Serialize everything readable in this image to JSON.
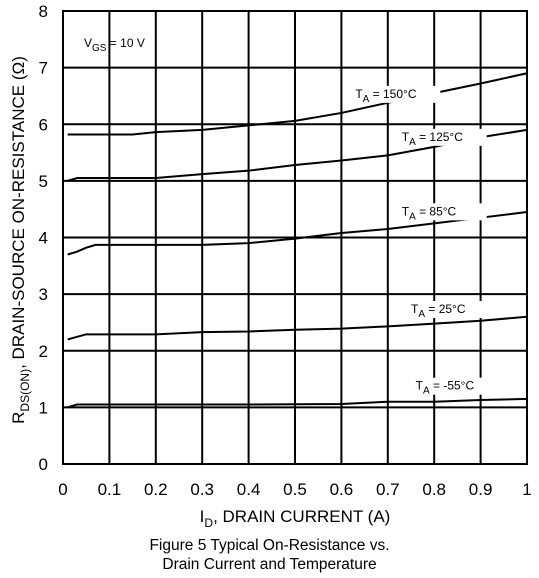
{
  "chart_data": {
    "type": "line",
    "xlim": [
      0,
      1
    ],
    "ylim": [
      0,
      8
    ],
    "xticks": [
      {
        "value": 0,
        "label": "0"
      },
      {
        "value": 0.1,
        "label": "0.1"
      },
      {
        "value": 0.2,
        "label": "0.2"
      },
      {
        "value": 0.3,
        "label": "0.3"
      },
      {
        "value": 0.4,
        "label": "0.4"
      },
      {
        "value": 0.5,
        "label": "0.5"
      },
      {
        "value": 0.6,
        "label": "0.6"
      },
      {
        "value": 0.7,
        "label": "0.7"
      },
      {
        "value": 0.8,
        "label": "0.8"
      },
      {
        "value": 0.9,
        "label": "0.9"
      },
      {
        "value": 1,
        "label": "1"
      }
    ],
    "yticks": [
      {
        "value": 0,
        "label": "0"
      },
      {
        "value": 1,
        "label": "1"
      },
      {
        "value": 2,
        "label": "2"
      },
      {
        "value": 3,
        "label": "3"
      },
      {
        "value": 4,
        "label": "4"
      },
      {
        "value": 5,
        "label": "5"
      },
      {
        "value": 6,
        "label": "6"
      },
      {
        "value": 7,
        "label": "7"
      },
      {
        "value": 8,
        "label": "8"
      }
    ],
    "grid": true,
    "annotation": {
      "main": "V",
      "sub": "GS",
      "rest": " = 10 V"
    },
    "xlabel": {
      "main": "I",
      "sub": "D",
      "rest": ", DRAIN CURRENT (A)"
    },
    "ylabel": {
      "main": "R",
      "sub": "DS(ON)",
      "rest": ", DRAIN-SOURCE ON-RESISTANCE (Ω)"
    },
    "series": [
      {
        "name": "T_A = 150°C",
        "label": {
          "main": "T",
          "sub": "A",
          "rest": " = 150°C"
        },
        "x": [
          0.01,
          0.15,
          0.2,
          0.3,
          0.4,
          0.5,
          0.6,
          0.7,
          0.8,
          0.9,
          1.0
        ],
        "y": [
          5.82,
          5.82,
          5.86,
          5.9,
          5.98,
          6.06,
          6.2,
          6.38,
          6.55,
          6.72,
          6.9
        ]
      },
      {
        "name": "T_A = 125°C",
        "label": {
          "main": "T",
          "sub": "A",
          "rest": " = 125°C"
        },
        "x": [
          0.01,
          0.03,
          0.2,
          0.3,
          0.4,
          0.5,
          0.6,
          0.7,
          0.8,
          0.9,
          1.0
        ],
        "y": [
          5.0,
          5.05,
          5.05,
          5.12,
          5.18,
          5.28,
          5.36,
          5.45,
          5.6,
          5.77,
          5.9
        ]
      },
      {
        "name": "T_A = 85°C",
        "label": {
          "main": "T",
          "sub": "A",
          "rest": " = 85°C"
        },
        "x": [
          0.01,
          0.03,
          0.05,
          0.07,
          0.2,
          0.3,
          0.4,
          0.5,
          0.6,
          0.7,
          0.8,
          0.9,
          1.0
        ],
        "y": [
          3.7,
          3.75,
          3.82,
          3.87,
          3.87,
          3.87,
          3.9,
          3.98,
          4.08,
          4.15,
          4.25,
          4.35,
          4.45
        ]
      },
      {
        "name": "T_A = 25°C",
        "label": {
          "main": "T",
          "sub": "A",
          "rest": " = 25°C"
        },
        "x": [
          0.01,
          0.05,
          0.2,
          0.3,
          0.4,
          0.5,
          0.6,
          0.7,
          0.8,
          0.9,
          1.0
        ],
        "y": [
          2.2,
          2.29,
          2.29,
          2.33,
          2.34,
          2.37,
          2.39,
          2.43,
          2.48,
          2.53,
          2.6
        ]
      },
      {
        "name": "T_A = -55°C",
        "label": {
          "main": "T",
          "sub": "A",
          "rest": " = -55°C"
        },
        "x": [
          0.01,
          0.03,
          0.2,
          0.4,
          0.6,
          0.7,
          0.8,
          0.9,
          1.0
        ],
        "y": [
          1.0,
          1.05,
          1.05,
          1.05,
          1.06,
          1.1,
          1.1,
          1.13,
          1.15
        ]
      }
    ]
  },
  "caption": {
    "line1": "Figure 5 Typical On-Resistance vs.",
    "line2": "Drain Current and Temperature"
  }
}
